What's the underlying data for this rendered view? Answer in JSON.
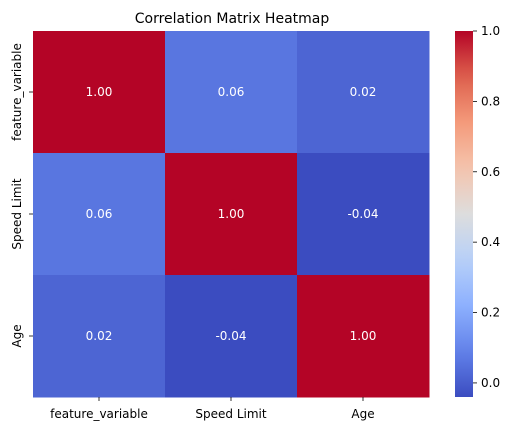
{
  "chart_data": {
    "type": "heatmap",
    "title": "Correlation Matrix Heatmap",
    "x_labels": [
      "feature_variable",
      "Speed Limit",
      "Age"
    ],
    "y_labels": [
      "feature_variable",
      "Speed Limit",
      "Age"
    ],
    "matrix": [
      [
        1.0,
        0.06,
        0.02
      ],
      [
        0.06,
        1.0,
        -0.04
      ],
      [
        0.02,
        -0.04,
        1.0
      ]
    ],
    "cell_labels": [
      [
        "1.00",
        "0.06",
        "0.02"
      ],
      [
        "0.06",
        "1.00",
        "-0.04"
      ],
      [
        "0.02",
        "-0.04",
        "1.00"
      ]
    ],
    "colormap": "coolwarm",
    "color_range": [
      -0.04,
      1.0
    ],
    "colorbar_ticks": [
      0.0,
      0.2,
      0.4,
      0.6,
      0.8,
      1.0
    ],
    "colorbar_tick_labels": [
      "0.0",
      "0.2",
      "0.4",
      "0.6",
      "0.8",
      "1.0"
    ],
    "xlabel": "",
    "ylabel": ""
  }
}
